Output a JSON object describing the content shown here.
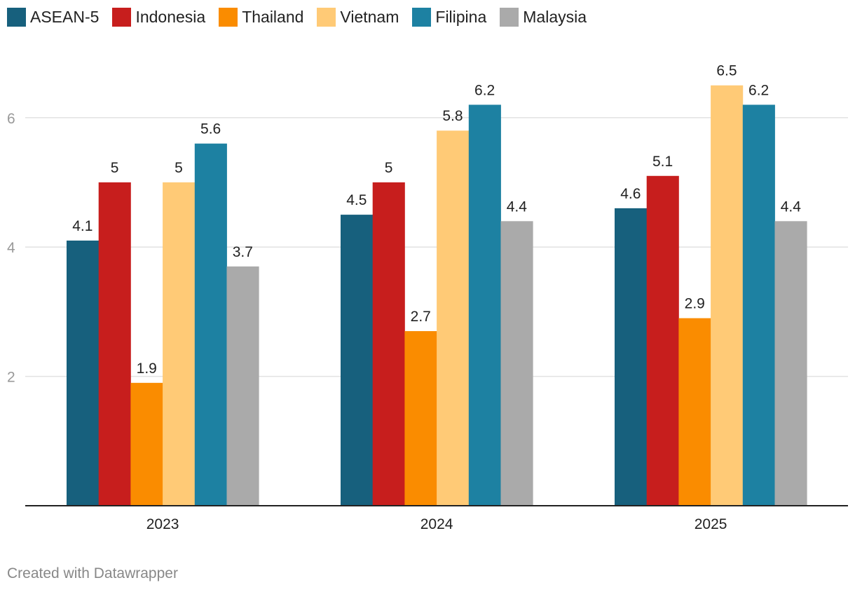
{
  "chart_data": {
    "type": "bar",
    "categories": [
      "2023",
      "2024",
      "2025"
    ],
    "series": [
      {
        "name": "ASEAN-5",
        "color": "#17607d",
        "values": [
          4.1,
          4.5,
          4.6
        ]
      },
      {
        "name": "Indonesia",
        "color": "#c71e1d",
        "values": [
          5,
          5,
          5.1
        ]
      },
      {
        "name": "Thailand",
        "color": "#fa8c00",
        "values": [
          1.9,
          2.7,
          2.9
        ]
      },
      {
        "name": "Vietnam",
        "color": "#ffca76",
        "values": [
          5,
          5.8,
          6.5
        ]
      },
      {
        "name": "Filipina",
        "color": "#1d81a2",
        "values": [
          5.6,
          6.2,
          6.2
        ]
      },
      {
        "name": "Malaysia",
        "color": "#aaaaaa",
        "values": [
          3.7,
          4.4,
          4.4
        ]
      }
    ],
    "yticks": [
      2,
      4,
      6
    ],
    "ylim": [
      0,
      7
    ],
    "title": "",
    "xlabel": "",
    "ylabel": "",
    "grid": true,
    "legend": "top-left"
  },
  "footer": {
    "credit": "Created with Datawrapper"
  }
}
